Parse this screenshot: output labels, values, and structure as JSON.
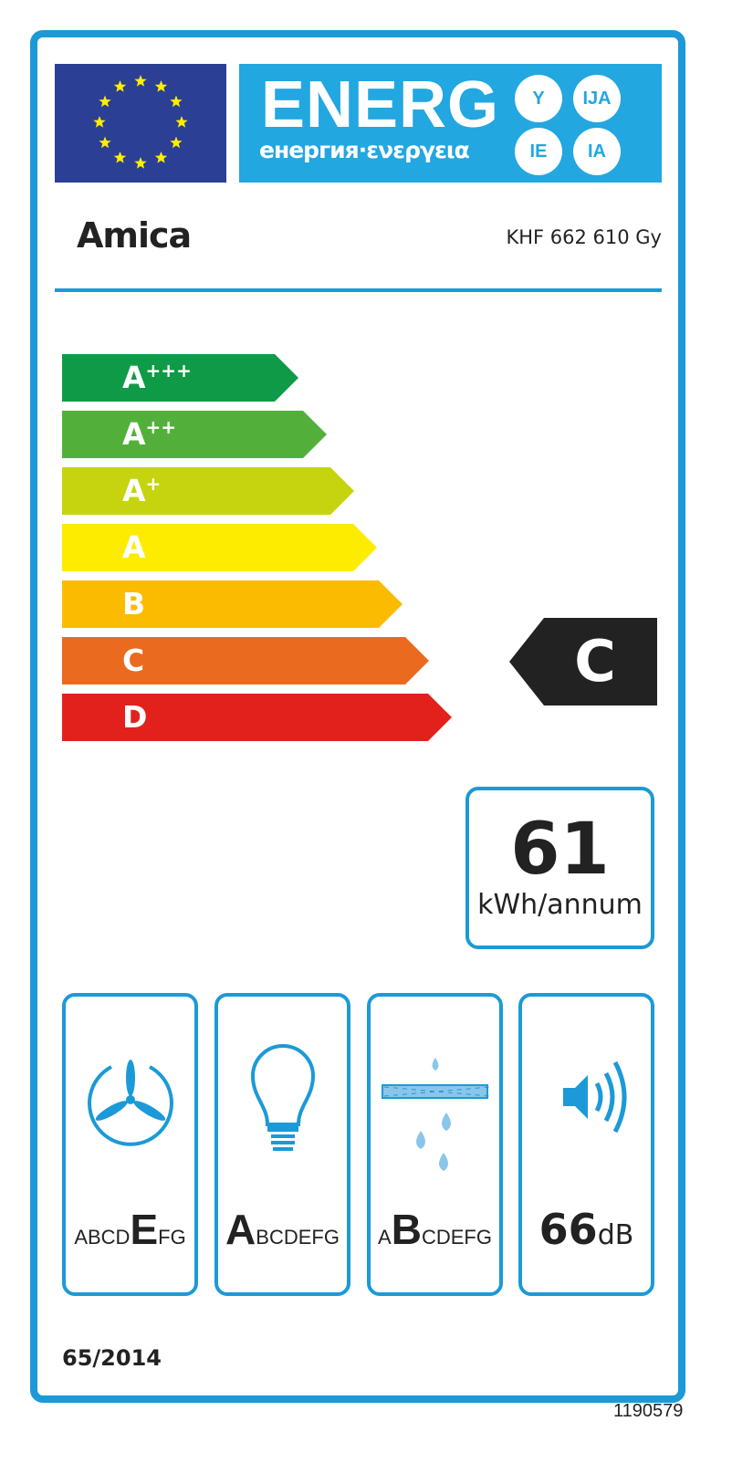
{
  "header": {
    "title": "ENERG",
    "subtitle": "енергия·ενεργεια",
    "suffixes": [
      "Y",
      "IJA",
      "IE",
      "IA"
    ]
  },
  "supplier": "Amica",
  "model": "KHF 662 610 Gy",
  "scale": [
    {
      "label": "A",
      "sup": "+++",
      "color": "#0f9a48"
    },
    {
      "label": "A",
      "sup": "++",
      "color": "#52b03a"
    },
    {
      "label": "A",
      "sup": "+",
      "color": "#c5d40e"
    },
    {
      "label": "A",
      "sup": "",
      "color": "#fdec00"
    },
    {
      "label": "B",
      "sup": "",
      "color": "#fbbb00"
    },
    {
      "label": "C",
      "sup": "",
      "color": "#ea6a1f"
    },
    {
      "label": "D",
      "sup": "",
      "color": "#e3211c"
    }
  ],
  "rating": "C",
  "energy": {
    "value": "61",
    "unit": "kWh/annum"
  },
  "classes": {
    "fluid_dynamic": {
      "pre": "ABCD",
      "sel": "E",
      "post": "FG"
    },
    "lighting": {
      "pre": "",
      "sel": "A",
      "post": "BCDEFG"
    },
    "grease_filtering": {
      "pre": "A",
      "sel": "B",
      "post": "CDEFG"
    },
    "noise": {
      "value": "66",
      "unit": "dB"
    }
  },
  "regulation": "65/2014",
  "code": "1190579",
  "colors": {
    "frame": "#1b9ad7",
    "flag": "#2b3f94",
    "banner": "#22a7e0"
  }
}
